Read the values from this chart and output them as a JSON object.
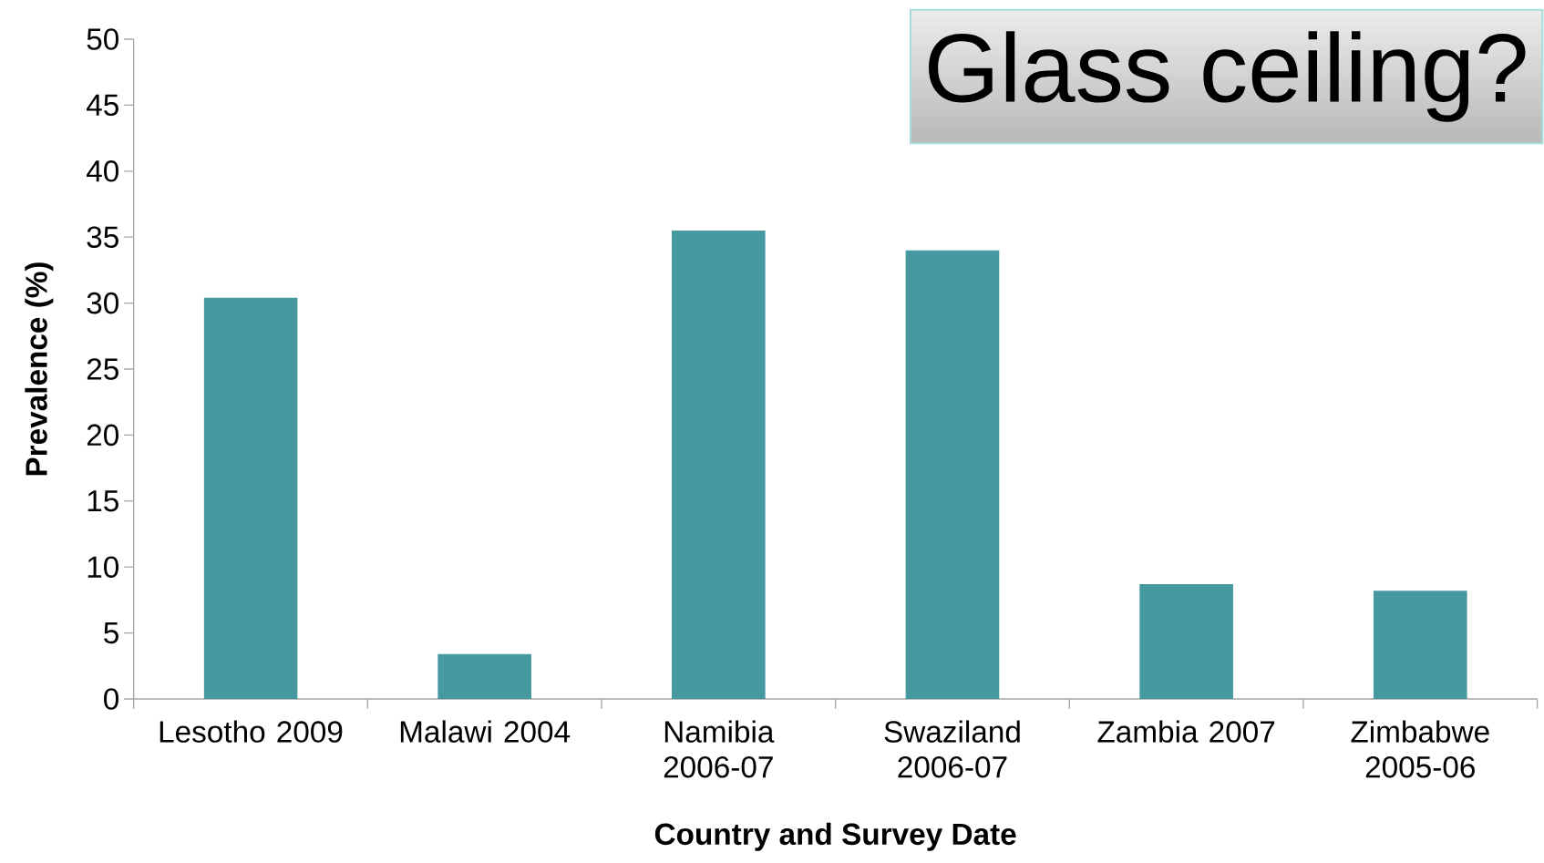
{
  "chart_data": {
    "type": "bar",
    "title": "Glass ceiling?",
    "xlabel": "Country and Survey Date",
    "ylabel": "Prevalence (%)",
    "categories": [
      "Lesotho 2009",
      "Malawi 2004",
      "Namibia 2006-07",
      "Swaziland 2006-07",
      "Zambia 2007",
      "Zimbabwe 2005-06"
    ],
    "values": [
      30.4,
      3.4,
      35.5,
      34.0,
      8.7,
      8.2
    ],
    "color": "#46999f",
    "ylim": [
      0,
      50
    ],
    "yticks": [
      0,
      5,
      10,
      15,
      20,
      25,
      30,
      35,
      40,
      45,
      50
    ],
    "grid": false
  }
}
